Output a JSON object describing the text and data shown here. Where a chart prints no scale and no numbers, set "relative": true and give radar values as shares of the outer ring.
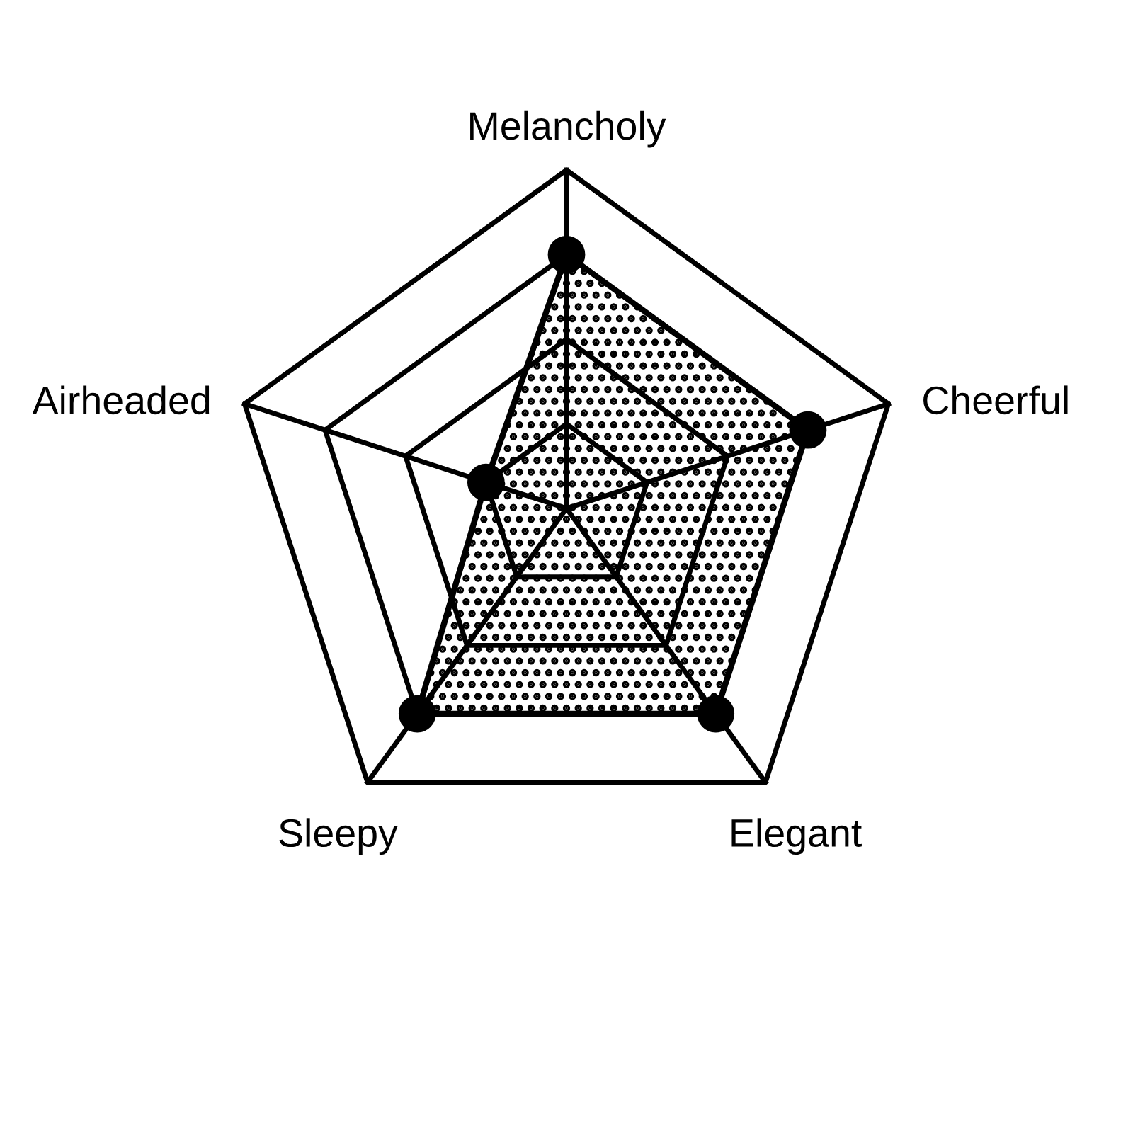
{
  "chart_data": {
    "type": "radar",
    "categories": [
      "Melancholy",
      "Cheerful",
      "Elegant",
      "Sleepy",
      "Airheaded"
    ],
    "relative": true,
    "grid": true,
    "marker": "circle",
    "series": [
      {
        "color": "#000000",
        "values": [
          0.75,
          0.75,
          0.75,
          0.75,
          0.25
        ]
      }
    ]
  }
}
